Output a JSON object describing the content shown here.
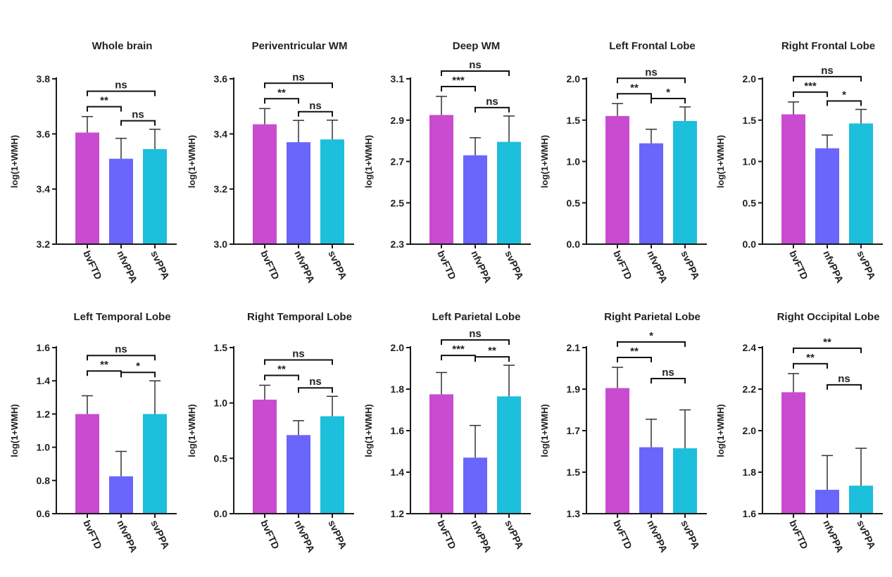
{
  "y_axis_label": "log(1+WMH)",
  "group_colors": [
    "#c94bd0",
    "#6a66fb",
    "#1cbfdc"
  ],
  "chart_data": [
    {
      "type": "bar",
      "title": "Whole brain",
      "categories": [
        "bvFTD",
        "nfvPPA",
        "svPPA"
      ],
      "values": [
        3.605,
        3.51,
        3.545
      ],
      "errors": [
        0.058,
        0.074,
        0.072
      ],
      "ylim": [
        3.2,
        3.8
      ],
      "ticks": [
        "3.2",
        "3.4",
        "3.6",
        "3.8"
      ],
      "ylabel": "log(1+WMH)",
      "comparisons": [
        {
          "from": 0,
          "to": 1,
          "label": "**"
        },
        {
          "from": 1,
          "to": 2,
          "label": "ns"
        },
        {
          "from": 0,
          "to": 2,
          "label": "ns"
        }
      ]
    },
    {
      "type": "bar",
      "title": "Periventricular WM",
      "categories": [
        "bvFTD",
        "nfvPPA",
        "svPPA"
      ],
      "values": [
        3.435,
        3.37,
        3.38
      ],
      "errors": [
        0.057,
        0.079,
        0.07
      ],
      "ylim": [
        3.0,
        3.6
      ],
      "ticks": [
        "3.0",
        "3.2",
        "3.4",
        "3.6"
      ],
      "ylabel": "log(1+WMH)",
      "comparisons": [
        {
          "from": 0,
          "to": 1,
          "label": "**"
        },
        {
          "from": 1,
          "to": 2,
          "label": "ns"
        },
        {
          "from": 0,
          "to": 2,
          "label": "ns"
        }
      ]
    },
    {
      "type": "bar",
      "title": "Deep WM",
      "categories": [
        "bvFTD",
        "nfvPPA",
        "svPPA"
      ],
      "values": [
        2.925,
        2.73,
        2.795
      ],
      "errors": [
        0.09,
        0.085,
        0.125
      ],
      "ylim": [
        2.3,
        3.1
      ],
      "ticks": [
        "2.3",
        "2.5",
        "2.7",
        "2.9",
        "3.1"
      ],
      "ylabel": "log(1+WMH)",
      "comparisons": [
        {
          "from": 0,
          "to": 1,
          "label": "***"
        },
        {
          "from": 1,
          "to": 2,
          "label": "ns"
        },
        {
          "from": 0,
          "to": 2,
          "label": "ns"
        }
      ]
    },
    {
      "type": "bar",
      "title": "Left Frontal Lobe",
      "categories": [
        "bvFTD",
        "nfvPPA",
        "svPPA"
      ],
      "values": [
        1.55,
        1.22,
        1.49
      ],
      "errors": [
        0.15,
        0.17,
        0.17
      ],
      "ylim": [
        0.0,
        2.0
      ],
      "ticks": [
        "0.0",
        "0.5",
        "1.0",
        "1.5",
        "2.0"
      ],
      "ylabel": "log(1+WMH)",
      "comparisons": [
        {
          "from": 0,
          "to": 1,
          "label": "**"
        },
        {
          "from": 1,
          "to": 2,
          "label": "*"
        },
        {
          "from": 0,
          "to": 2,
          "label": "ns"
        }
      ]
    },
    {
      "type": "bar",
      "title": "Right Frontal Lobe",
      "categories": [
        "bvFTD",
        "nfvPPA",
        "svPPA"
      ],
      "values": [
        1.57,
        1.16,
        1.46
      ],
      "errors": [
        0.15,
        0.16,
        0.17
      ],
      "ylim": [
        0.0,
        2.0
      ],
      "ticks": [
        "0.0",
        "0.5",
        "1.0",
        "1.5",
        "2.0"
      ],
      "ylabel": "log(1+WMH)",
      "comparisons": [
        {
          "from": 0,
          "to": 1,
          "label": "***"
        },
        {
          "from": 1,
          "to": 2,
          "label": "*"
        },
        {
          "from": 0,
          "to": 2,
          "label": "ns"
        }
      ]
    },
    {
      "type": "bar",
      "title": "Left Temporal Lobe",
      "categories": [
        "bvFTD",
        "nfvPPA",
        "svPPA"
      ],
      "values": [
        1.2,
        0.825,
        1.2
      ],
      "errors": [
        0.11,
        0.15,
        0.2
      ],
      "ylim": [
        0.6,
        1.6
      ],
      "ticks": [
        "0.6",
        "0.8",
        "1.0",
        "1.2",
        "1.4",
        "1.6"
      ],
      "ylabel": "log(1+WMH)",
      "comparisons": [
        {
          "from": 0,
          "to": 1,
          "label": "**"
        },
        {
          "from": 1,
          "to": 2,
          "label": "*"
        },
        {
          "from": 0,
          "to": 2,
          "label": "ns"
        }
      ]
    },
    {
      "type": "bar",
      "title": "Right Temporal Lobe",
      "categories": [
        "bvFTD",
        "nfvPPA",
        "svPPA"
      ],
      "values": [
        1.03,
        0.71,
        0.88
      ],
      "errors": [
        0.13,
        0.13,
        0.18
      ],
      "ylim": [
        0.0,
        1.5
      ],
      "ticks": [
        "0.0",
        "0.5",
        "1.0",
        "1.5"
      ],
      "ylabel": "log(1+WMH)",
      "comparisons": [
        {
          "from": 0,
          "to": 1,
          "label": "**"
        },
        {
          "from": 1,
          "to": 2,
          "label": "ns"
        },
        {
          "from": 0,
          "to": 2,
          "label": "ns"
        }
      ]
    },
    {
      "type": "bar",
      "title": "Left Parietal Lobe",
      "categories": [
        "bvFTD",
        "nfvPPA",
        "svPPA"
      ],
      "values": [
        1.775,
        1.47,
        1.765
      ],
      "errors": [
        0.105,
        0.155,
        0.15
      ],
      "ylim": [
        1.2,
        2.0
      ],
      "ticks": [
        "1.2",
        "1.4",
        "1.6",
        "1.8",
        "2.0"
      ],
      "ylabel": "log(1+WMH)",
      "comparisons": [
        {
          "from": 0,
          "to": 1,
          "label": "***"
        },
        {
          "from": 1,
          "to": 2,
          "label": "**"
        },
        {
          "from": 0,
          "to": 2,
          "label": "ns"
        }
      ]
    },
    {
      "type": "bar",
      "title": "Right Parietal Lobe",
      "categories": [
        "bvFTD",
        "nfvPPA",
        "svPPA"
      ],
      "values": [
        1.905,
        1.62,
        1.615
      ],
      "errors": [
        0.1,
        0.135,
        0.185
      ],
      "ylim": [
        1.3,
        2.1
      ],
      "ticks": [
        "1.3",
        "1.5",
        "1.7",
        "1.9",
        "2.1"
      ],
      "ylabel": "log(1+WMH)",
      "comparisons": [
        {
          "from": 0,
          "to": 1,
          "label": "**"
        },
        {
          "from": 1,
          "to": 2,
          "label": "ns"
        },
        {
          "from": 0,
          "to": 2,
          "label": "*"
        }
      ]
    },
    {
      "type": "bar",
      "title": "Right Occipital Lobe",
      "categories": [
        "bvFTD",
        "nfvPPA",
        "svPPA"
      ],
      "values": [
        2.185,
        1.715,
        1.735
      ],
      "errors": [
        0.09,
        0.165,
        0.18
      ],
      "ylim": [
        1.6,
        2.4
      ],
      "ticks": [
        "1.6",
        "1.8",
        "2.0",
        "2.2",
        "2.4"
      ],
      "ylabel": "log(1+WMH)",
      "comparisons": [
        {
          "from": 0,
          "to": 1,
          "label": "**"
        },
        {
          "from": 1,
          "to": 2,
          "label": "ns"
        },
        {
          "from": 0,
          "to": 2,
          "label": "**"
        }
      ]
    }
  ]
}
